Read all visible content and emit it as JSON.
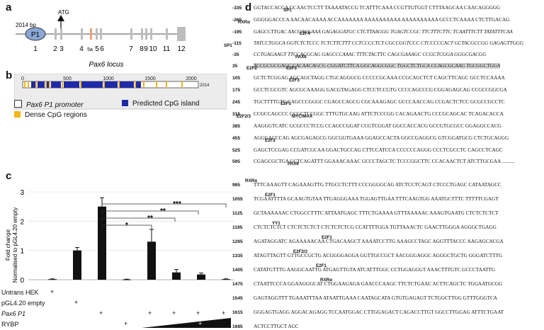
{
  "panel_a": {
    "label": "a",
    "promoter_length": "2014 bp",
    "promoter_name": "P1",
    "atg_label": "ATG",
    "exon_labels": [
      "1",
      "2",
      "3",
      "4",
      "5a",
      "5",
      "6",
      "7",
      "8",
      "9",
      "10",
      "11",
      "12"
    ],
    "locus_label": "Pax6 locus",
    "colors": {
      "exon": "#bdbdbd",
      "exon5a": "#f0a07a",
      "promoter": "#8aa6d6"
    }
  },
  "panel_b": {
    "label": "b",
    "ticks": [
      "0",
      "500",
      "1000",
      "1500",
      "2000"
    ],
    "end_tick": "2014",
    "legend": [
      {
        "name": "Pax6 P1 promoter",
        "color": "#ffffff"
      },
      {
        "name": "Predicted CpG island",
        "color": "#1f2aa8"
      },
      {
        "name": "Dense CpG regions",
        "color": "#f2b51a"
      }
    ]
  },
  "panel_c": {
    "label": "c",
    "ylabel_line1": "Fold change",
    "ylabel_line2": "Normalised to pGL4.20 empty",
    "sig_marks": [
      "*",
      "**",
      "**",
      "***"
    ],
    "row_labels": [
      "Untrans HEK",
      "pGL4.20 empty",
      "Pax6 P1",
      "RYBP"
    ],
    "plus": "+",
    "chart_data": {
      "type": "bar",
      "ylabel": "Fold change Normalised to pGL4.20 empty",
      "ylim": [
        0,
        3
      ],
      "yticks": [
        "0",
        "1",
        "2",
        "3"
      ],
      "values": [
        0.02,
        1.0,
        2.5,
        0.01,
        1.3,
        0.25,
        0.18,
        0.02
      ],
      "errors": [
        0.01,
        0.1,
        0.3,
        0.01,
        0.42,
        0.1,
        0.05,
        0.01
      ],
      "grid": false
    }
  },
  "panel_d": {
    "label": "d",
    "rows": [
      {
        "n": "-335",
        "t": "GGTACCACGA GCAACTCCTT TAAAATACCG TCATTTCAAA CCGTTGTGGT CTTTAAGCAA CAACAGGGGG"
      },
      {
        "n": "-265",
        "t": "GGGGGACCCA AACAACAAAA ACCAAAAAAA AAAAAAAAAA AAAAAAAAAA GCCCTCAAAA CTCTTGACAG"
      },
      {
        "n": "-195",
        "t": "GAGCCTTGAC AACGACGAAA GAGAGGATGC CTCTTAAGGG TGAGTCCGC TTCTTTCTTC TCAATTTCTT TATATTTCAA"
      },
      {
        "n": "-115",
        "t": "TATCCTGGCA GGTCTCTCCC TCTCTTCTTT CCTCCCCTCT CGCCGGTCCC CTCCCCCACT GCTACGCCGG GAGAGTTGGG"
      },
      {
        "n": "-35",
        "t": "CCTGAGAAGT TTCCACGCAG GAGCCCAAAC TTTCTACTTC CAGCGAAAGC CCGCTCGGA GGGCGACGG"
      },
      {
        "n": "35",
        "t": "TCCGCGCGAGC CACAACAGCG CGGATCTTCA GGCAGGCGGC TGGCTCTGCA CCAGCGCAAG TGCGGCTGGA"
      },
      {
        "n": "105",
        "t": "GCTCTCGGAG AGCAGCTAGG CTGCAGGGCG CCCCCGCAAA CCGCAGCTCT CAGCTTCAGC GCCTCCAAAA"
      },
      {
        "n": "175",
        "t": "GCCTCGCGTC AGCGCAAAGG GACGTAGAGG CTCCTCCGTG CCCCAGCCCG CGGAGAGCAG CCGCCGGCGA"
      },
      {
        "n": "245",
        "t": "TGCTTTTGTC CAGCCCGGGC CGAGCCAGCG CGCAAAGAGC GCCCAACCAG CCGACTCTCC GCGCCGCCTC"
      },
      {
        "n": "315",
        "t": "CCGCCAGCCC GCGCTCCGGC TTTGTGCAAG ATTCTCCCGG CACAGAACTG CCCGCAGCAC TCAGACACCA"
      },
      {
        "n": "385",
        "t": "AAGGGTCATC GCGCCCTCCG CCAGCCGGAT CCGTCGGAT GGCCACCACG GCCGTGCGCC GGAGGCCACG"
      },
      {
        "n": "455",
        "t": "AGGGACCCAG AGCGAGAGCG GGCGGTGAAA GGAGCCACTA GGCCGAGGCG GTCGGATGCG CTCTGCAGGG"
      },
      {
        "n": "525",
        "t": "GAGCTCCGAG CCGATCGCAA GGACTGCCAG CTTCCATCCA CCCCCCAGGG CCCTCGCCTC CAGCCTCAGC"
      },
      {
        "n": "595",
        "t": "CGAGCGCTGA GCTCAGATTT GGAAACAAAC GCCCTAGCTC TCCCGGCTTC CCACAACTCT ATCTTGCGAA .........."
      },
      {
        "n": "985",
        "t": "TTTCAAAGTT CAGAAAGTTG TTGCCTCTTT CCCGGGGCAG ATCTCCTCAGT CTCCCTGAGC CATAATAGCC"
      },
      {
        "n": "1055",
        "t": "TCGAATTTTA GCAAGTGTAA TTGAGGGAAA TGGAGTTGAA TTTCAAGTGG AAATGCTTTC TTTTTCGAGT"
      },
      {
        "n": "1125",
        "t": "GCTAAAAAAC CTGGCCTTTC ATTAATGAGC TTTCTGAAAA GTTTAAAAAC AAAGTGAATG CTCTCTCTCT"
      },
      {
        "n": "1195",
        "t": "CTCTCTCTCT CTCTCTCTCT CTCTCTCTCG CCATTTTGGA TGTTAAACTC GAACTTGGGA AGGGCTGAGG"
      },
      {
        "n": "1265",
        "t": "AGATAGGATC AGAAAAACAA CTGACAAGCT AAAATCCTTG AAAGCCTAGC AGGTTTACCC AAGAGCACGA"
      },
      {
        "n": "1335",
        "t": "ATAGTTAGTT GTTGCCGCTG ACGGGGAGGA GGTTGCCGCT AACGGGAGGC AGGGCTGCTG GGGATCTTTG"
      },
      {
        "n": "1405",
        "t": "CATATGTTTG AAGGCAATTG ATGAGTTGTA ATCATTTGGC CCTGGAGGGT AAACTTTGTC GCCCTAATTG"
      },
      {
        "n": "1475",
        "t": "CTAATTCCCA GGAAGGGCAT CTGGAAGAGA GAACCCAAGC TTCTCTGAAC ACTTCAGCTC TGGAATGCGG"
      },
      {
        "n": "1545",
        "t": "GAGTAGGTTT TGAAATTTAA ATAATTGAAA CAATAGCATA GTGTGAGAGT TCTGGCTTGG GTTTGGGTCA"
      },
      {
        "n": "1615",
        "t": "GGGAGTGAGG AGGACAGAGG TCCAATGGAC CTTGGAGACT CAGACCTTGT GGCCTTGGAG ATTTCTGAAT"
      },
      {
        "n": "1685",
        "t": "ACTCCTTGCT AGC"
      }
    ],
    "annotations": [
      "SP1",
      "RXRα",
      "E2F4",
      "SP1",
      "PAX6",
      "E2F2",
      "E2F3",
      "E2F3",
      "E2F1",
      "E2F2/3",
      "MYC/MAX",
      "E2F2",
      "PAX6",
      "RXRα",
      "E2F1",
      "YY1",
      "E2F1",
      "E2F2/3",
      "E2F1",
      "RXRα"
    ]
  }
}
